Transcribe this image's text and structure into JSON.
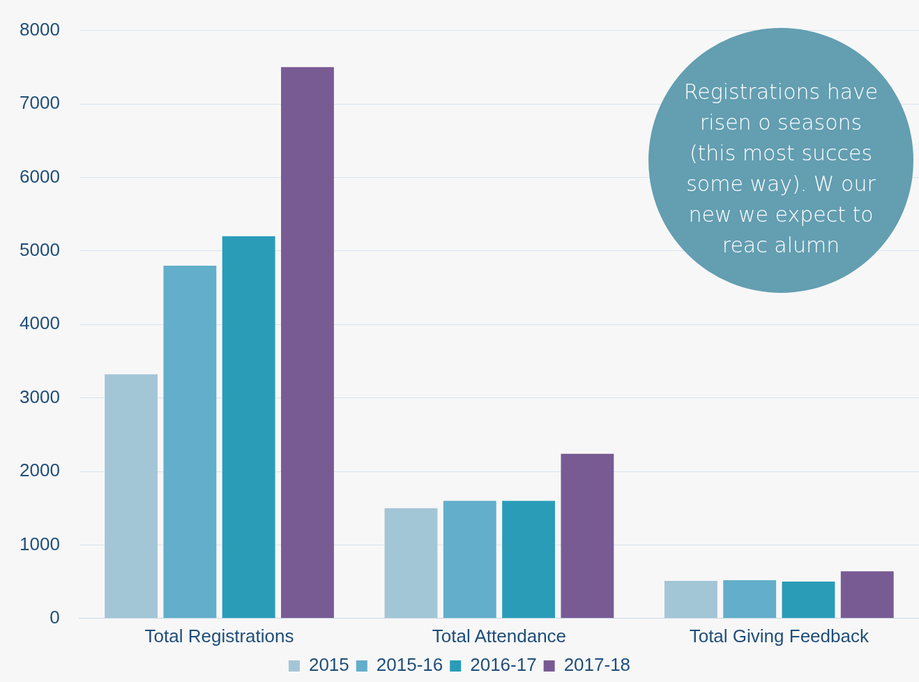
{
  "chart_data": {
    "type": "bar",
    "categories": [
      "Total Registrations",
      "Total Attendance",
      "Total Giving Feedback"
    ],
    "series": [
      {
        "name": "2015",
        "color": "#a3c6d6",
        "values": [
          3320,
          1500,
          510
        ]
      },
      {
        "name": "2015-16",
        "color": "#62aecb",
        "values": [
          4800,
          1600,
          520
        ]
      },
      {
        "name": "2016-17",
        "color": "#2a9cb8",
        "values": [
          5200,
          1600,
          500
        ]
      },
      {
        "name": "2017-18",
        "color": "#795b94",
        "values": [
          7500,
          2240,
          640
        ]
      }
    ],
    "ylim": [
      0,
      8000
    ],
    "yticks": [
      0,
      1000,
      2000,
      3000,
      4000,
      5000,
      6000,
      7000,
      8000
    ],
    "grid": "y",
    "legend": "bottom",
    "annotations": [
      "Registrations have risen o seasons (this most succes some way). W our new we expect to reac alumn"
    ]
  }
}
